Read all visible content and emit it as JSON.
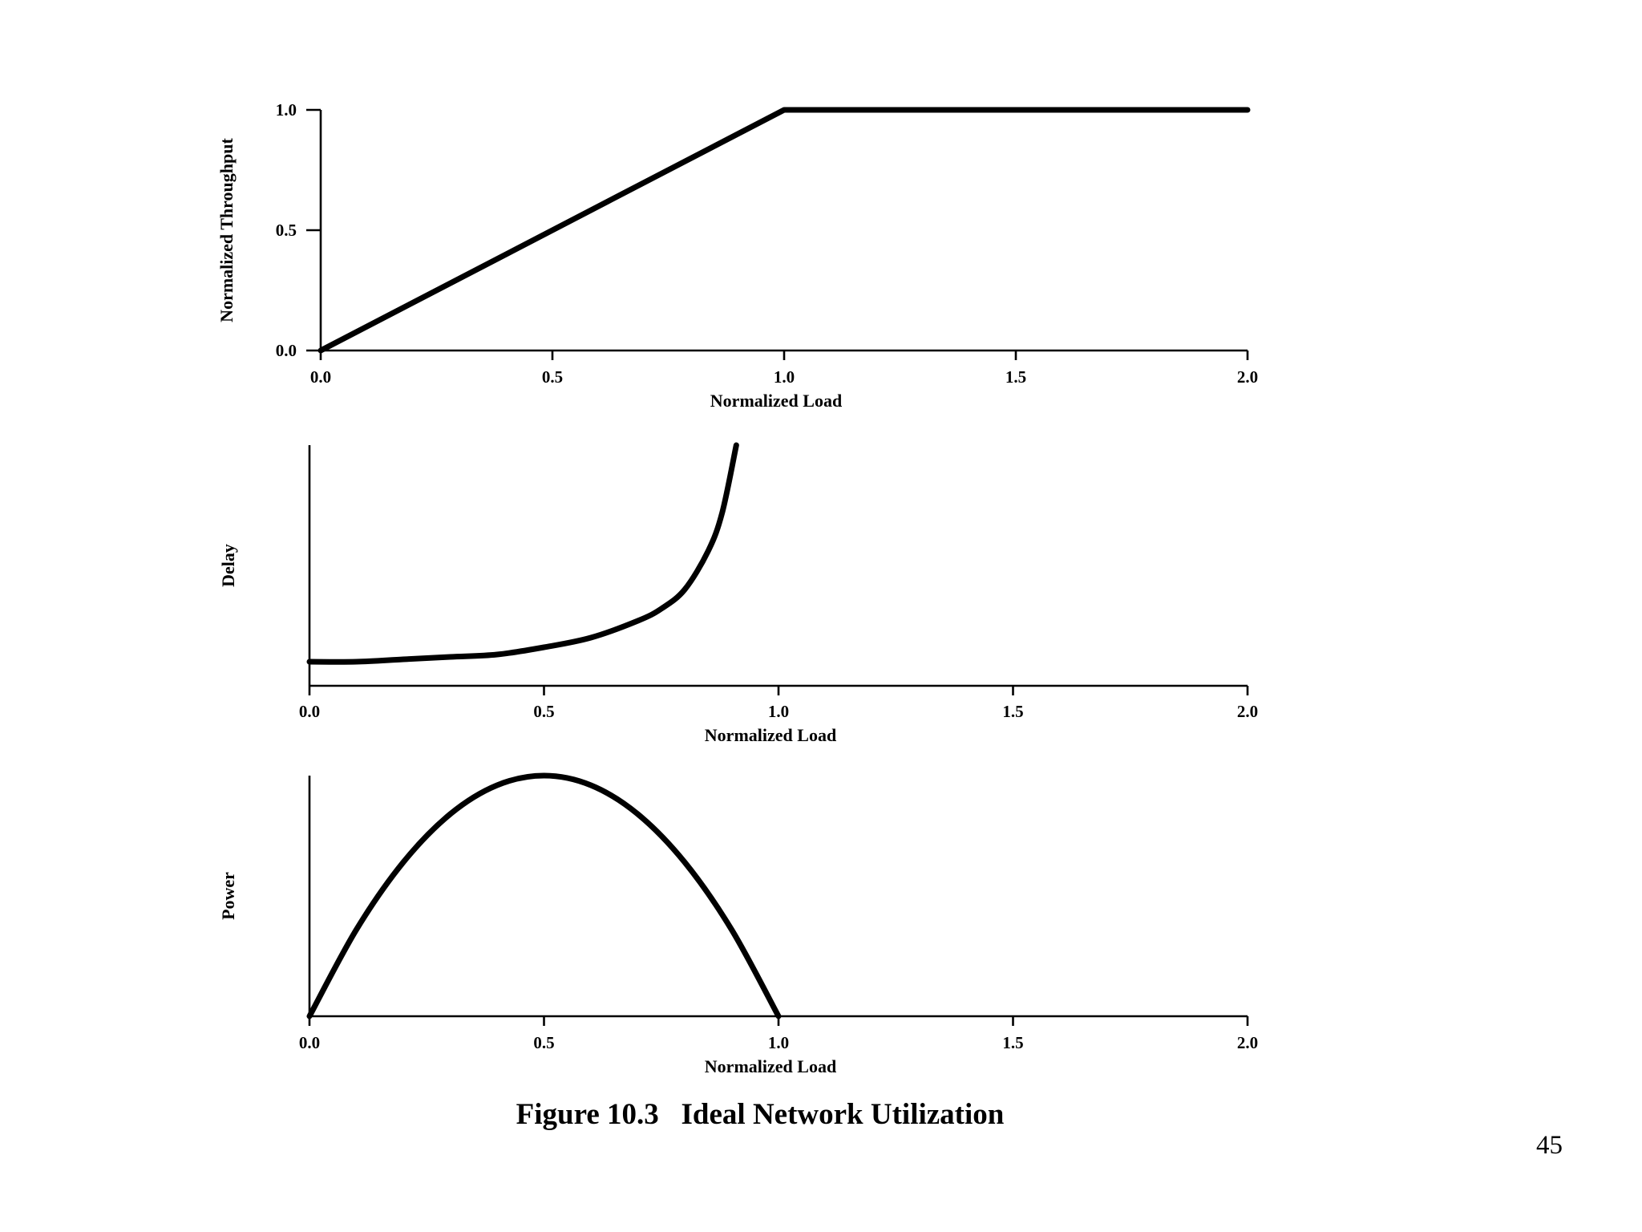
{
  "chart_data": [
    {
      "type": "line",
      "xlabel": "Normalized Load",
      "ylabel": "Normalized Throughput",
      "xlim": [
        0,
        2.0
      ],
      "ylim": [
        0,
        1.0
      ],
      "x_ticks": [
        "0.0",
        "0.5",
        "1.0",
        "1.5",
        "2.0"
      ],
      "y_ticks": [
        "0.0",
        "0.5",
        "1.0"
      ],
      "series": [
        {
          "x": [
            0.0,
            1.0,
            2.0
          ],
          "y": [
            0.0,
            1.0,
            1.0
          ]
        }
      ]
    },
    {
      "type": "line",
      "xlabel": "Normalized Load",
      "ylabel": "Delay",
      "xlim": [
        0,
        2.0
      ],
      "ylim": [
        0,
        1.0
      ],
      "x_ticks": [
        "0.0",
        "0.5",
        "1.0",
        "1.5",
        "2.0"
      ],
      "y_ticks": [],
      "series": [
        {
          "x": [
            0.0,
            0.1,
            0.2,
            0.3,
            0.4,
            0.5,
            0.6,
            0.7,
            0.75,
            0.8,
            0.85,
            0.88,
            0.91
          ],
          "y": [
            0.1,
            0.1,
            0.11,
            0.12,
            0.13,
            0.16,
            0.2,
            0.27,
            0.32,
            0.4,
            0.56,
            0.72,
            1.0
          ]
        }
      ]
    },
    {
      "type": "line",
      "xlabel": "Normalized Load",
      "ylabel": "Power",
      "xlim": [
        0,
        2.0
      ],
      "ylim": [
        0,
        1.0
      ],
      "x_ticks": [
        "0.0",
        "0.5",
        "1.0",
        "1.5",
        "2.0"
      ],
      "y_ticks": [],
      "series": [
        {
          "x": [
            0.0,
            0.1,
            0.2,
            0.3,
            0.4,
            0.5,
            0.6,
            0.7,
            0.8,
            0.9,
            1.0
          ],
          "y": [
            0.0,
            0.36,
            0.64,
            0.84,
            0.96,
            1.0,
            0.96,
            0.84,
            0.64,
            0.36,
            0.0
          ]
        }
      ]
    }
  ],
  "caption": "Figure 10.3   Ideal Network Utilization",
  "slide_number": "45"
}
